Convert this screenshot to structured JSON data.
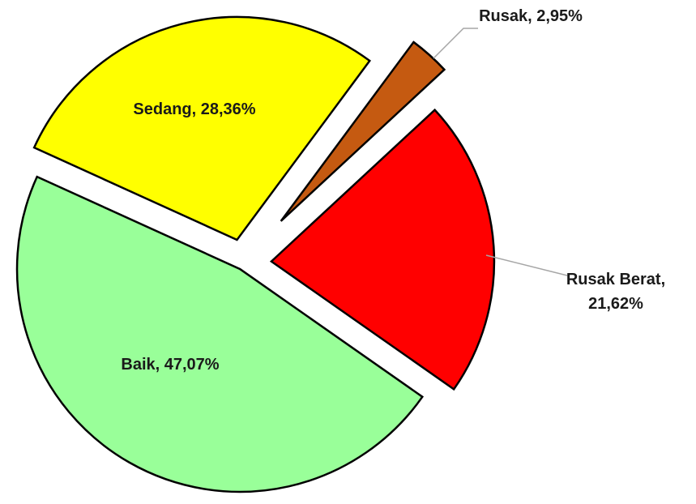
{
  "chart_data": {
    "type": "pie",
    "values": [
      47.07,
      28.36,
      2.95,
      21.62
    ],
    "value_labels": [
      "Baik, 47,07%",
      "Sedang, 28,36%",
      "Rusak, 2,95%",
      "Rusak Berat, 21,62%"
    ],
    "colors": [
      "#99ff99",
      "#ffff00",
      "#c55a11",
      "#ff0000"
    ]
  }
}
